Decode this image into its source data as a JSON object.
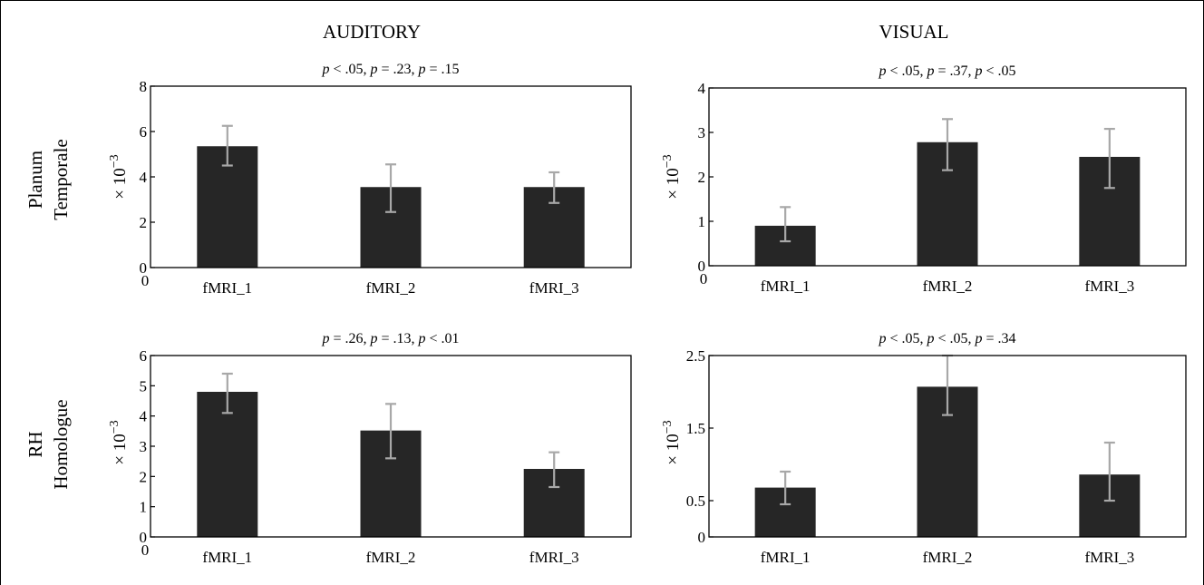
{
  "figure": {
    "columns": [
      "AUDITORY",
      "VISUAL"
    ],
    "rows": [
      [
        "Planum",
        "Temporale"
      ],
      [
        "RH",
        "Homologue"
      ]
    ]
  },
  "chart_data": [
    {
      "type": "bar",
      "panel": "auditory-planum-temporale",
      "subtitle": "p < .05, p = .23, p = .15",
      "ylabel": "× 10−3",
      "categories": [
        "fMRI_1",
        "fMRI_2",
        "fMRI_3"
      ],
      "values": [
        5.35,
        3.55,
        3.55
      ],
      "error_low": [
        4.5,
        2.45,
        2.85
      ],
      "error_high": [
        6.25,
        4.55,
        4.2
      ],
      "ylim": [
        0,
        8
      ],
      "yticks": [
        0,
        2,
        4,
        6,
        8
      ],
      "ytick_labels": [
        "0",
        "2",
        "4",
        "6",
        "8"
      ],
      "origin_label": "0",
      "grid": false,
      "bar_color": "#262626",
      "error_color": "#a8a8a8"
    },
    {
      "type": "bar",
      "panel": "visual-planum-temporale",
      "subtitle": "p < .05, p = .37, p < .05",
      "ylabel": "× 10−3",
      "categories": [
        "fMRI_1",
        "fMRI_2",
        "fMRI_3"
      ],
      "values": [
        0.9,
        2.78,
        2.45
      ],
      "error_low": [
        0.55,
        2.15,
        1.75
      ],
      "error_high": [
        1.32,
        3.3,
        3.08
      ],
      "ylim": [
        0,
        4
      ],
      "yticks": [
        0,
        1,
        2,
        3,
        4
      ],
      "ytick_labels": [
        "0",
        "1",
        "2",
        "3",
        "4"
      ],
      "origin_label": "0",
      "grid": false,
      "bar_color": "#262626",
      "error_color": "#a8a8a8"
    },
    {
      "type": "bar",
      "panel": "auditory-rh-homologue",
      "subtitle": "p = .26, p = .13, p < .01",
      "ylabel": "× 10−3",
      "categories": [
        "fMRI_1",
        "fMRI_2",
        "fMRI_3"
      ],
      "values": [
        4.8,
        3.52,
        2.25
      ],
      "error_low": [
        4.1,
        2.6,
        1.65
      ],
      "error_high": [
        5.4,
        4.4,
        2.8
      ],
      "ylim": [
        0,
        6
      ],
      "yticks": [
        0,
        1,
        2,
        3,
        4,
        5,
        6
      ],
      "ytick_labels": [
        "0",
        "1",
        "2",
        "3",
        "4",
        "5",
        "6"
      ],
      "origin_label": "0",
      "grid": false,
      "bar_color": "#262626",
      "error_color": "#a8a8a8"
    },
    {
      "type": "bar",
      "panel": "visual-rh-homologue",
      "subtitle": "p < .05, p < .05, p = .34",
      "ylabel": "× 10−3",
      "categories": [
        "fMRI_1",
        "fMRI_2",
        "fMRI_3"
      ],
      "values": [
        0.68,
        2.07,
        0.86
      ],
      "error_low": [
        0.45,
        1.68,
        0.5
      ],
      "error_high": [
        0.9,
        2.5,
        1.3
      ],
      "ylim": [
        0,
        2.5
      ],
      "yticks": [
        0,
        0.5,
        1.5,
        2.5
      ],
      "ytick_labels": [
        "0",
        "0.5",
        "1.5",
        "2.5"
      ],
      "origin_label": "",
      "grid": false,
      "bar_color": "#262626",
      "error_color": "#a8a8a8"
    }
  ]
}
